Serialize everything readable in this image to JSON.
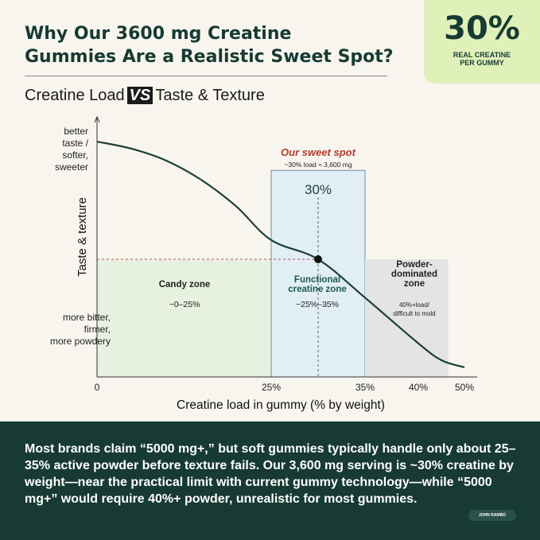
{
  "header": {
    "title_line1": "Why Our 3600 mg Creatine",
    "title_line2": "Gummies Are a Realistic Sweet Spot?"
  },
  "badge": {
    "value": "30%",
    "caption_line1": "REAL CREATINE",
    "caption_line2": "PER GUMMY"
  },
  "subtitle": {
    "left": "Creatine Load",
    "vs": "VS",
    "right": "Taste & Texture"
  },
  "chart_data": {
    "type": "line",
    "xlabel": "Creatine load in gummy (% by weight)",
    "ylabel": "Taste & texture",
    "x_ticks": [
      {
        "value": 0,
        "label": "0"
      },
      {
        "value": 25,
        "label": "25%"
      },
      {
        "value": 35,
        "label": "35%"
      },
      {
        "value": 40,
        "label": "40%"
      },
      {
        "value": 50,
        "label": "50%"
      }
    ],
    "xlim": [
      0,
      52
    ],
    "ylim": [
      0,
      1
    ],
    "y_top_label": [
      "better",
      "taste /",
      "softer,",
      "sweeter"
    ],
    "y_bottom_label": [
      "more bitter,",
      "firmer,",
      "more powdery"
    ],
    "curve": {
      "x": [
        0,
        5,
        10,
        15,
        20,
        25,
        30,
        35,
        40,
        45,
        50
      ],
      "y": [
        0.98,
        0.95,
        0.9,
        0.82,
        0.71,
        0.57,
        0.49,
        0.33,
        0.14,
        0.07,
        0.04
      ]
    },
    "marker": {
      "x": 30,
      "y": 0.49
    },
    "zones": [
      {
        "name": "candy",
        "from": 0,
        "to": 25,
        "top": 0.49,
        "color": "#e6f1df",
        "label_lines": [
          "Candy zone"
        ],
        "range": "~0–25%"
      },
      {
        "name": "functional",
        "from": 25,
        "to": 35,
        "top": 0.86,
        "color": "#e1eef5",
        "label_lines": [
          "Functional",
          "creatine zone"
        ],
        "range": "~25%–35%"
      },
      {
        "name": "powder",
        "from": 35,
        "to": 46.5,
        "top": 0.49,
        "color": "#e4e4e4",
        "label_lines": [
          "Powder-",
          "dominated",
          "zone"
        ],
        "range_lines": [
          "40%+load/",
          "difficult to mold"
        ]
      }
    ],
    "sweet_spot": {
      "title": "Our sweet spot",
      "note": "~30% load ≈ 3,600 mg",
      "value_label": "30%"
    }
  },
  "footer": {
    "text": "Most brands claim “5000 mg+,” but soft gummies typically handle only about 25–35% active powder before texture fails. Our 3,600 mg serving is ~30% creatine by weight—near the practical limit with current gummy tech­nology—while “5000 mg+” would require 40%+ powder, unrealistic for most gummies.",
    "logo": "JOHN RAMBO"
  },
  "colors": {
    "brand": "#173a33",
    "accent": "#dff0b9",
    "sweet_spot": "#b23a2a",
    "marker_line": "#c0504d"
  }
}
